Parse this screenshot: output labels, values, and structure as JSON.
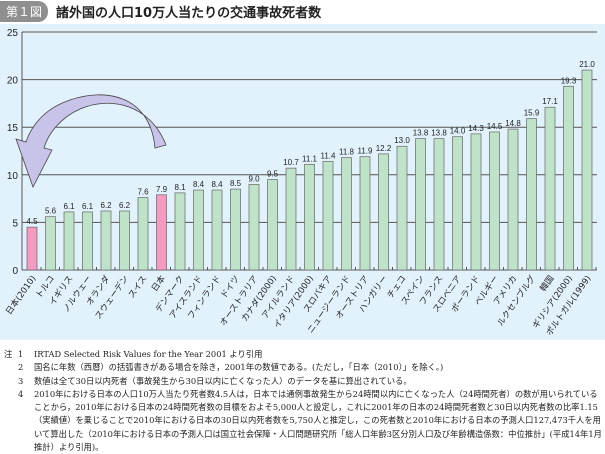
{
  "title": {
    "badge": "第１図",
    "text": "諸外国の人口10万人当たりの交通事故死者数"
  },
  "chart_data": {
    "type": "bar",
    "title": "諸外国の人口10万人当たりの交通事故死者数",
    "xlabel": "",
    "ylabel": "",
    "ylim": [
      0,
      25
    ],
    "yticks": [
      0,
      5,
      10,
      15,
      20,
      25
    ],
    "grid": true,
    "categories": [
      "日本(2010)",
      "トルコ",
      "イギリス",
      "ノルウェー",
      "オランダ",
      "スウェーデン",
      "スイス",
      "日本",
      "デンマーク",
      "アイスランド",
      "フィンランド",
      "ドイツ",
      "オーストラリア",
      "カナダ(2000)",
      "アイルランド",
      "イタリア(2000)",
      "スロバキア",
      "ニュージーランド",
      "オーストリア",
      "ハンガリー",
      "チェコ",
      "スペイン",
      "フランス",
      "スロベニア",
      "ポーランド",
      "ベルギー",
      "アメリカ",
      "ルクセンブルグ",
      "韓国",
      "ギリシア(2000)",
      "ポルトガル(1999)"
    ],
    "values": [
      4.5,
      5.6,
      6.1,
      6.1,
      6.2,
      6.2,
      7.6,
      7.9,
      8.1,
      8.4,
      8.4,
      8.5,
      9.0,
      9.5,
      10.7,
      11.1,
      11.4,
      11.8,
      11.9,
      12.2,
      13.0,
      13.8,
      13.8,
      14.0,
      14.3,
      14.5,
      14.8,
      15.9,
      17.1,
      19.3,
      21.0
    ],
    "highlighted": [
      0,
      7
    ],
    "colors": {
      "normal": "#bfe3c8",
      "highlight": "#f59ac0",
      "arrow": "#c8c3e8"
    }
  },
  "notes": {
    "label": "注",
    "items": [
      {
        "num": "1",
        "text": "IRTAD Selected Risk Values for the Year 2001 より引用"
      },
      {
        "num": "2",
        "text": "国名に年数（西暦）の括弧書きがある場合を除き，2001年の数値である。(ただし，「日本（2010）」を除く。)"
      },
      {
        "num": "3",
        "text": "数値は全て30日以内死者（事故発生から30日以内に亡くなった人）のデータを基に算出されている。"
      },
      {
        "num": "4",
        "text": "2010年における日本の人口10万人当たり死者数4.5人は，日本では通例事故発生から24時間以内に亡くなった人（24時間死者）の数が用いられていることから，2010年における日本の24時間死者数の目標をおよそ5,000人と設定し，これに2001年の日本の24時間死者数と30日以内死者数の比率1.15（実績値）を乗じることで2010年における日本の30日以内死者数を5,750人と推定し，この死者数と2010年における日本の予測人口127,473千人を用いて算出した（2010年における日本の予測人口は国立社会保障・人口問題研究所「総人口年齢3区分別人口及び年齢構造係数：中位推計」(平成14年1月推計）より引用)。"
      }
    ]
  }
}
